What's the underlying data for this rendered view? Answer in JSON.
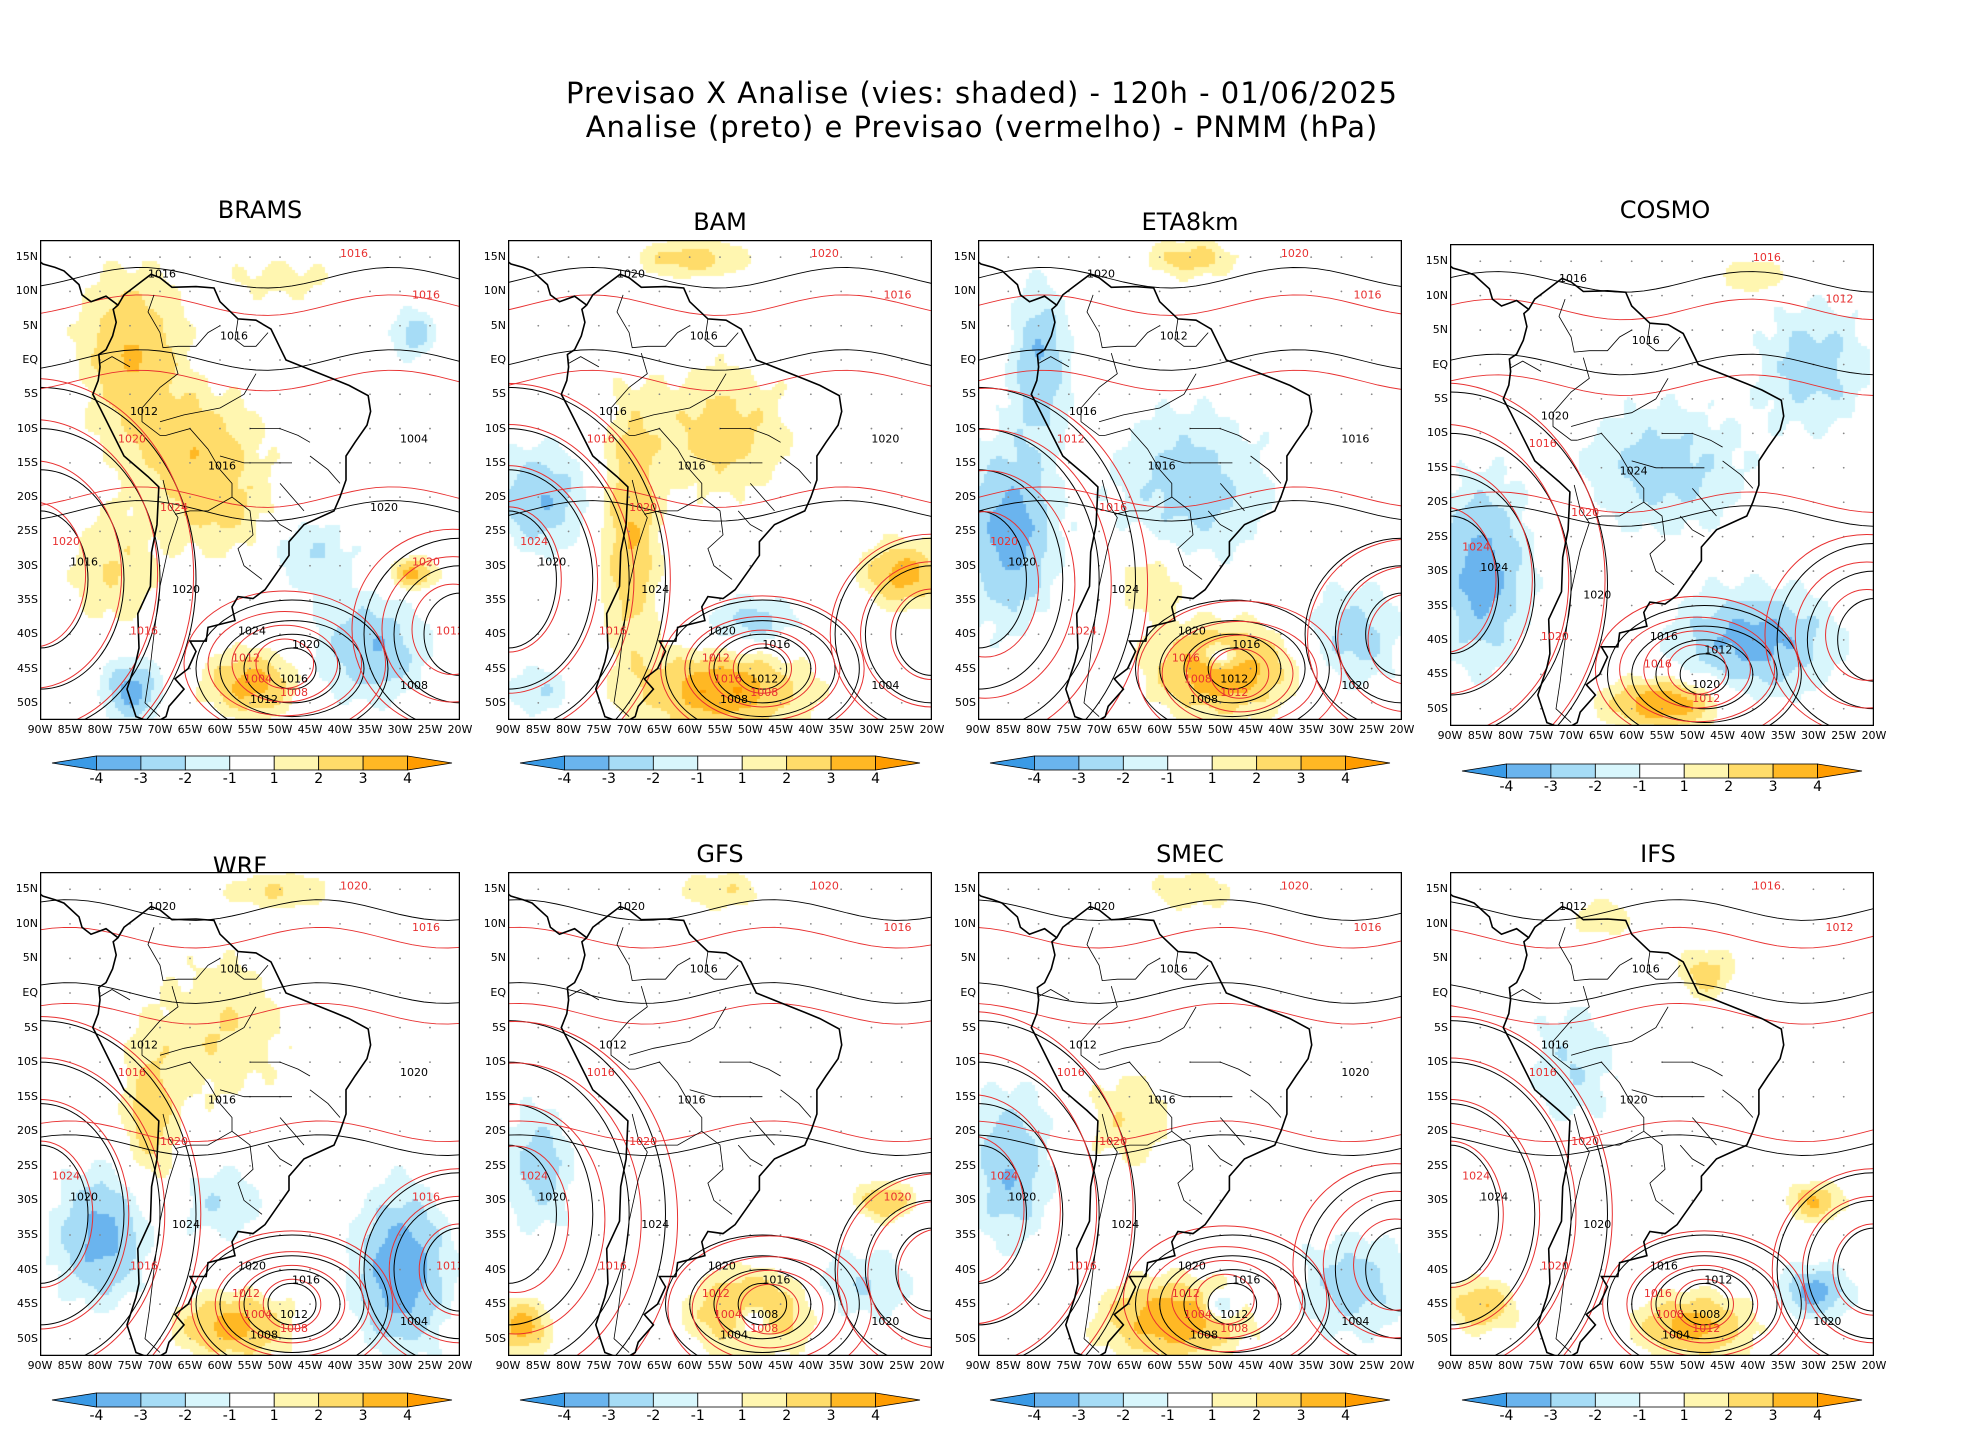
{
  "header": {
    "line1": "Previsao X Analise (vies: shaded) - 120h - 01/06/2025",
    "line2": "Analise (preto) e Previsao (vermelho) - PNMM (hPa)"
  },
  "colors": {
    "neg4": "#3a9ae6",
    "neg3": "#6ab4ee",
    "neg2": "#a6dcf6",
    "neg1": "#d8f6fc",
    "pos1": "#fff6b0",
    "pos2": "#ffdc6a",
    "pos3": "#ffb824",
    "pos4": "#ff9c00",
    "analysis_contour": "#000000",
    "forecast_contour": "#e83030"
  },
  "axes": {
    "lat_labels": [
      "15N",
      "10N",
      "5N",
      "EQ",
      "5S",
      "10S",
      "15S",
      "20S",
      "25S",
      "30S",
      "35S",
      "40S",
      "45S",
      "50S"
    ],
    "lon_labels": [
      "90W",
      "85W",
      "80W",
      "75W",
      "70W",
      "65W",
      "60W",
      "55W",
      "50W",
      "45W",
      "40W",
      "35W",
      "30W",
      "25W",
      "20W"
    ]
  },
  "colorbar": {
    "labels": [
      "-4",
      "-3",
      "-2",
      "-1",
      "1",
      "2",
      "3",
      "4"
    ]
  },
  "panels": [
    {
      "name": "BRAMS",
      "labels_black": [
        "1016",
        "1016",
        "1012",
        "1016",
        "1016",
        "1020",
        "1024",
        "1020",
        "1016",
        "1012",
        "1008",
        "1004",
        "1020"
      ],
      "labels_red": [
        "1016",
        "1016",
        "1020",
        "1024",
        "1020",
        "1016",
        "1012",
        "1008",
        "1004",
        "1020",
        "1012"
      ]
    },
    {
      "name": "BAM",
      "labels_black": [
        "1020",
        "1016",
        "1016",
        "1016",
        "1020",
        "1024",
        "1020",
        "1016",
        "1012",
        "1008",
        "1004",
        "1020"
      ],
      "labels_red": [
        "1020",
        "1016",
        "1016",
        "1020",
        "1024",
        "1016",
        "1012",
        "1008",
        "1016"
      ]
    },
    {
      "name": "ETA8km",
      "labels_black": [
        "1020",
        "1012",
        "1016",
        "1016",
        "1020",
        "1024",
        "1020",
        "1016",
        "1012",
        "1008",
        "1020",
        "1016"
      ],
      "labels_red": [
        "1020",
        "1016",
        "1012",
        "1016",
        "1020",
        "1024",
        "1016",
        "1012",
        "1008"
      ]
    },
    {
      "name": "COSMO",
      "labels_black": [
        "1016",
        "1016",
        "1020",
        "1024",
        "1024",
        "1020",
        "1016",
        "1012",
        "1020"
      ],
      "labels_red": [
        "1016",
        "1012",
        "1016",
        "1020",
        "1024",
        "1020",
        "1016",
        "1012"
      ]
    },
    {
      "name": "WRF",
      "labels_black": [
        "1020",
        "1016",
        "1012",
        "1016",
        "1020",
        "1024",
        "1020",
        "1016",
        "1012",
        "1008",
        "1004",
        "1020"
      ],
      "labels_red": [
        "1020",
        "1016",
        "1016",
        "1020",
        "1024",
        "1016",
        "1012",
        "1008",
        "1004",
        "1016",
        "1012"
      ]
    },
    {
      "name": "GFS",
      "labels_black": [
        "1020",
        "1016",
        "1012",
        "1016",
        "1020",
        "1024",
        "1020",
        "1016",
        "1008",
        "1004",
        "1020"
      ],
      "labels_red": [
        "1020",
        "1016",
        "1016",
        "1020",
        "1024",
        "1016",
        "1012",
        "1008",
        "1004",
        "1020"
      ]
    },
    {
      "name": "SMEC",
      "labels_black": [
        "1020",
        "1016",
        "1012",
        "1016",
        "1020",
        "1024",
        "1020",
        "1016",
        "1012",
        "1008",
        "1004",
        "1020"
      ],
      "labels_red": [
        "1020",
        "1016",
        "1016",
        "1020",
        "1024",
        "1016",
        "1012",
        "1008",
        "1004"
      ]
    },
    {
      "name": "IFS",
      "labels_black": [
        "1012",
        "1016",
        "1016",
        "1020",
        "1024",
        "1020",
        "1016",
        "1012",
        "1008",
        "1004",
        "1020"
      ],
      "labels_red": [
        "1016",
        "1012",
        "1016",
        "1020",
        "1024",
        "1020",
        "1016",
        "1012",
        "1008"
      ]
    }
  ],
  "chart_data": [
    {
      "type": "heatmap",
      "model": "BRAMS",
      "variable": "PNMM bias (hPa)",
      "levels": [
        -4,
        -3,
        -2,
        -1,
        1,
        2,
        3,
        4
      ],
      "blobs": [
        {
          "lon": -75,
          "lat": 2,
          "bias": 2.5,
          "rlon": 9,
          "rlat": 12
        },
        {
          "lon": -65,
          "lat": -12,
          "bias": 2,
          "rlon": 12,
          "rlat": 9
        },
        {
          "lon": -60,
          "lat": -22,
          "bias": 1.5,
          "rlon": 10,
          "rlat": 8
        },
        {
          "lon": -78,
          "lat": -30,
          "bias": 1.5,
          "rlon": 8,
          "rlat": 10
        },
        {
          "lon": -55,
          "lat": -47,
          "bias": 3,
          "rlon": 8,
          "rlat": 5
        },
        {
          "lon": -28,
          "lat": -31,
          "bias": 3,
          "rlon": 4,
          "rlat": 2.5
        },
        {
          "lon": -35,
          "lat": -42,
          "bias": -2.5,
          "rlon": 10,
          "rlat": 8
        },
        {
          "lon": -75,
          "lat": -48,
          "bias": -3,
          "rlon": 5,
          "rlat": 5
        },
        {
          "lon": -45,
          "lat": -28,
          "bias": -1.5,
          "rlon": 8,
          "rlat": 6
        },
        {
          "lon": -28,
          "lat": 4,
          "bias": -2,
          "rlon": 4,
          "rlat": 4
        },
        {
          "lon": -50,
          "lat": 12,
          "bias": 1,
          "rlon": 12,
          "rlat": 4
        }
      ]
    },
    {
      "type": "heatmap",
      "model": "BAM",
      "variable": "PNMM bias (hPa)",
      "levels": [
        -4,
        -3,
        -2,
        -1,
        1,
        2,
        3,
        4
      ],
      "blobs": [
        {
          "lon": -55,
          "lat": -10,
          "bias": 2,
          "rlon": 12,
          "rlat": 10
        },
        {
          "lon": -70,
          "lat": -25,
          "bias": 2.5,
          "rlon": 5,
          "rlat": 20
        },
        {
          "lon": -55,
          "lat": -48,
          "bias": 3.5,
          "rlon": 14,
          "rlat": 6
        },
        {
          "lon": -25,
          "lat": -31,
          "bias": 3,
          "rlon": 7,
          "rlat": 5
        },
        {
          "lon": -85,
          "lat": -20,
          "bias": -2.5,
          "rlon": 8,
          "rlat": 8
        },
        {
          "lon": -50,
          "lat": -38,
          "bias": -2,
          "rlon": 8,
          "rlat": 4
        },
        {
          "lon": -85,
          "lat": -48,
          "bias": -1.5,
          "rlon": 6,
          "rlat": 4
        },
        {
          "lon": -60,
          "lat": 15,
          "bias": 2,
          "rlon": 10,
          "rlat": 3
        }
      ]
    },
    {
      "type": "heatmap",
      "model": "ETA8km",
      "variable": "PNMM bias (hPa)",
      "levels": [
        -4,
        -3,
        -2,
        -1,
        1,
        2,
        3,
        4
      ],
      "blobs": [
        {
          "lon": -55,
          "lat": -18,
          "bias": -2,
          "rlon": 14,
          "rlat": 12
        },
        {
          "lon": -85,
          "lat": -25,
          "bias": -3,
          "rlon": 8,
          "rlat": 14
        },
        {
          "lon": -80,
          "lat": 0,
          "bias": -2.5,
          "rlon": 5,
          "rlat": 12
        },
        {
          "lon": -50,
          "lat": -45,
          "bias": 3.5,
          "rlon": 12,
          "rlat": 7
        },
        {
          "lon": -62,
          "lat": -32,
          "bias": 1.5,
          "rlon": 7,
          "rlat": 6
        },
        {
          "lon": -50,
          "lat": -43,
          "bias": -3,
          "rlon": 3,
          "rlat": 2
        },
        {
          "lon": -28,
          "lat": -40,
          "bias": -2,
          "rlon": 8,
          "rlat": 8
        },
        {
          "lon": -55,
          "lat": 15,
          "bias": 2,
          "rlon": 8,
          "rlat": 3
        }
      ]
    },
    {
      "type": "heatmap",
      "model": "COSMO",
      "variable": "PNMM bias (hPa)",
      "levels": [
        -4,
        -3,
        -2,
        -1,
        1,
        2,
        3,
        4
      ],
      "blobs": [
        {
          "lon": -55,
          "lat": -15,
          "bias": -2,
          "rlon": 14,
          "rlat": 10
        },
        {
          "lon": -85,
          "lat": -30,
          "bias": -3,
          "rlon": 8,
          "rlat": 14
        },
        {
          "lon": -40,
          "lat": -40,
          "bias": -3,
          "rlon": 14,
          "rlat": 8
        },
        {
          "lon": -55,
          "lat": -49,
          "bias": 3.5,
          "rlon": 10,
          "rlat": 4
        },
        {
          "lon": -30,
          "lat": 0,
          "bias": -2,
          "rlon": 10,
          "rlat": 10
        },
        {
          "lon": -40,
          "lat": 13,
          "bias": 1.5,
          "rlon": 6,
          "rlat": 3
        }
      ]
    },
    {
      "type": "heatmap",
      "model": "WRF",
      "variable": "PNMM bias (hPa)",
      "levels": [
        -4,
        -3,
        -2,
        -1,
        1,
        2,
        3,
        4
      ],
      "blobs": [
        {
          "lon": -60,
          "lat": -5,
          "bias": 1.5,
          "rlon": 12,
          "rlat": 12
        },
        {
          "lon": -72,
          "lat": -18,
          "bias": 2,
          "rlon": 5,
          "rlat": 12
        },
        {
          "lon": -58,
          "lat": -48,
          "bias": 3,
          "rlon": 10,
          "rlat": 5
        },
        {
          "lon": -80,
          "lat": -35,
          "bias": -3,
          "rlon": 8,
          "rlat": 10
        },
        {
          "lon": -30,
          "lat": -40,
          "bias": -3.5,
          "rlon": 8,
          "rlat": 12
        },
        {
          "lon": -60,
          "lat": -30,
          "bias": -1.5,
          "rlon": 8,
          "rlat": 6
        },
        {
          "lon": -50,
          "lat": 15,
          "bias": 1.5,
          "rlon": 10,
          "rlat": 3
        }
      ]
    },
    {
      "type": "heatmap",
      "model": "GFS",
      "variable": "PNMM bias (hPa)",
      "levels": [
        -4,
        -3,
        -2,
        -1,
        1,
        2,
        3,
        4
      ],
      "blobs": [
        {
          "lon": -50,
          "lat": -46,
          "bias": 3.5,
          "rlon": 10,
          "rlat": 6
        },
        {
          "lon": -88,
          "lat": -48,
          "bias": 3,
          "rlon": 5,
          "rlat": 4
        },
        {
          "lon": -28,
          "lat": -30,
          "bias": 2.5,
          "rlon": 5,
          "rlat": 3
        },
        {
          "lon": -85,
          "lat": -25,
          "bias": -2,
          "rlon": 6,
          "rlat": 10
        },
        {
          "lon": -50,
          "lat": -47,
          "bias": -3,
          "rlon": 4,
          "rlat": 3
        },
        {
          "lon": -32,
          "lat": -42,
          "bias": -1.5,
          "rlon": 10,
          "rlat": 6
        },
        {
          "lon": -55,
          "lat": 15,
          "bias": 1.5,
          "rlon": 8,
          "rlat": 3
        }
      ]
    },
    {
      "type": "heatmap",
      "model": "SMEC",
      "variable": "PNMM bias (hPa)",
      "levels": [
        -4,
        -3,
        -2,
        -1,
        1,
        2,
        3,
        4
      ],
      "blobs": [
        {
          "lon": -58,
          "lat": -47,
          "bias": 3.5,
          "rlon": 12,
          "rlat": 6
        },
        {
          "lon": -65,
          "lat": -18,
          "bias": 1.5,
          "rlon": 8,
          "rlat": 8
        },
        {
          "lon": -85,
          "lat": -25,
          "bias": -2.5,
          "rlon": 7,
          "rlat": 12
        },
        {
          "lon": -50,
          "lat": -45,
          "bias": -3,
          "rlon": 3,
          "rlat": 2
        },
        {
          "lon": -28,
          "lat": -42,
          "bias": -2,
          "rlon": 10,
          "rlat": 8
        },
        {
          "lon": -55,
          "lat": 15,
          "bias": 1.5,
          "rlon": 8,
          "rlat": 3
        }
      ]
    },
    {
      "type": "heatmap",
      "model": "IFS",
      "variable": "PNMM bias (hPa)",
      "levels": [
        -4,
        -3,
        -2,
        -1,
        1,
        2,
        3,
        4
      ],
      "blobs": [
        {
          "lon": -50,
          "lat": -48,
          "bias": 3,
          "rlon": 10,
          "rlat": 5
        },
        {
          "lon": -30,
          "lat": -30,
          "bias": 2.5,
          "rlon": 5,
          "rlat": 3
        },
        {
          "lon": -85,
          "lat": -45,
          "bias": 2.5,
          "rlon": 6,
          "rlat": 4
        },
        {
          "lon": -30,
          "lat": -43,
          "bias": -3,
          "rlon": 6,
          "rlat": 4
        },
        {
          "lon": -70,
          "lat": -10,
          "bias": -1.5,
          "rlon": 8,
          "rlat": 10
        },
        {
          "lon": -48,
          "lat": 3,
          "bias": 2,
          "rlon": 5,
          "rlat": 4
        },
        {
          "lon": -65,
          "lat": 11,
          "bias": 1.5,
          "rlon": 5,
          "rlat": 3
        }
      ]
    }
  ]
}
